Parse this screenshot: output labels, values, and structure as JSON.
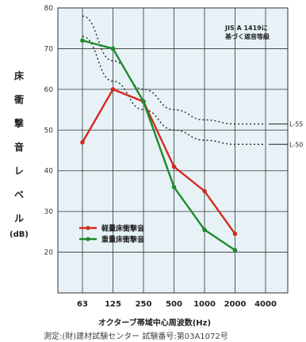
{
  "chart_data": {
    "type": "line",
    "x": [
      "63",
      "125",
      "250",
      "500",
      "1000",
      "2000",
      "4000"
    ],
    "ylim": [
      10,
      80
    ],
    "yticks": [
      20,
      30,
      40,
      50,
      60,
      70,
      80
    ],
    "ylabel_chars": [
      "床",
      "衝",
      "撃",
      "音",
      "レ",
      "ベ",
      "ル"
    ],
    "ylabel_unit": "(dB)",
    "xlabel": "オクターブ帯域中心周波数(Hz)",
    "annotation": [
      "JIS A 1419に",
      "基づく遮音等級"
    ],
    "grid": true,
    "background": "#e7f2f7",
    "series": [
      {
        "name": "軽量床衝撃音",
        "color": "#d42a1f",
        "values": [
          47,
          60,
          57,
          41,
          35,
          24.5,
          null
        ]
      },
      {
        "name": "重量床衝撃音",
        "color": "#1f8a2b",
        "values": [
          72,
          70,
          57,
          36,
          25.5,
          20.5,
          null
        ]
      }
    ],
    "reference_curves": [
      {
        "name": "L-55",
        "values": [
          78,
          67,
          60,
          55,
          52.5,
          51.5,
          51.5
        ]
      },
      {
        "name": "L-50",
        "values": [
          73,
          62,
          55,
          50,
          47.5,
          46.5,
          46.5
        ]
      }
    ],
    "legend_placement": "lower-left"
  },
  "footer": "測定:(財)建材試験センター 試験番号:第03A1072号"
}
